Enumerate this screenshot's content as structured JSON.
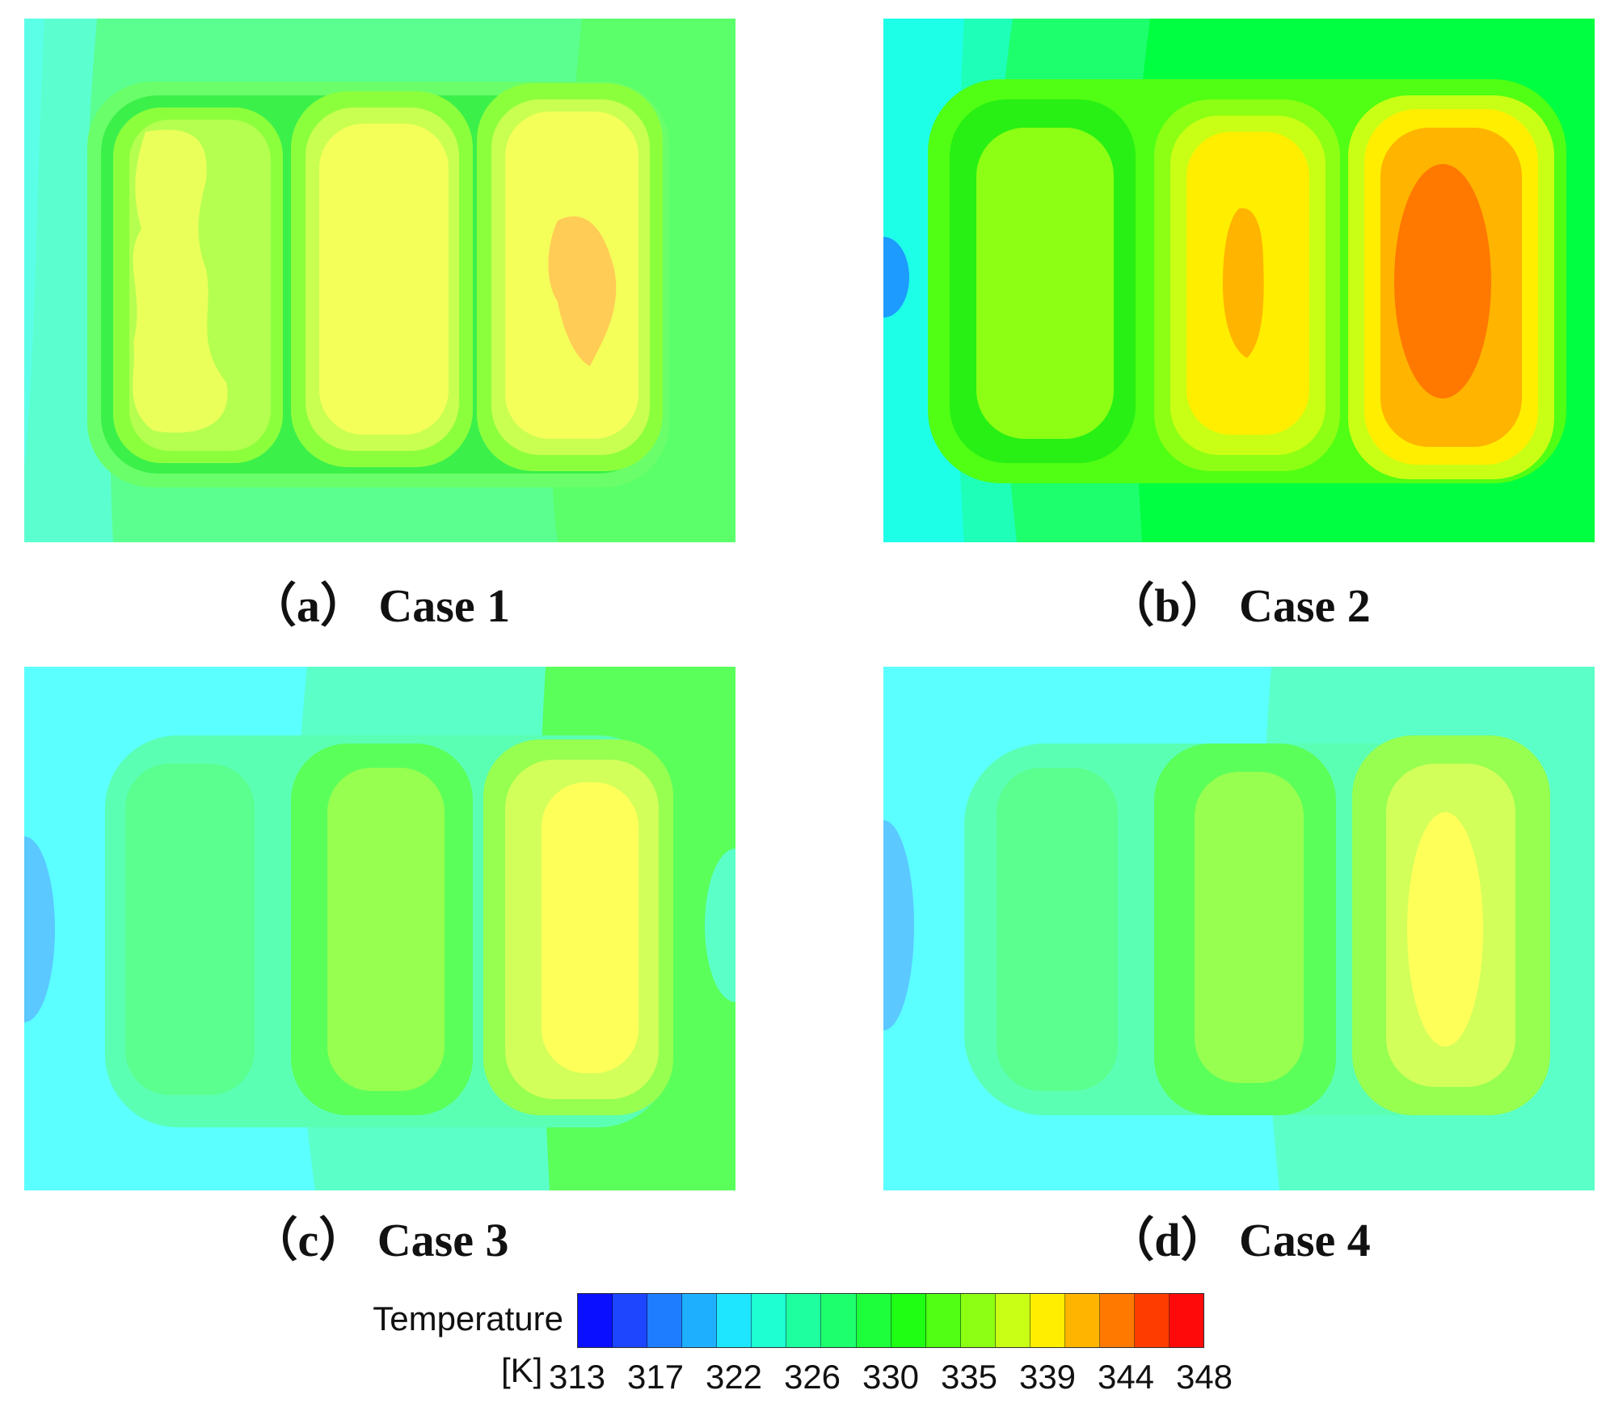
{
  "chart_data": [
    {
      "type": "heatmap",
      "caption": "（a） Case 1",
      "variable": "Temperature",
      "unit": "[K]",
      "background": "#5bff8f",
      "zones": [
        {
          "region": "left_edge",
          "temperature": 324
        },
        {
          "region": "block_1",
          "temperature": 339
        },
        {
          "region": "block_2",
          "temperature": 340
        },
        {
          "region": "block_3",
          "temperature": 340
        },
        {
          "region": "hotspot_3",
          "temperature": 344
        },
        {
          "region": "right_edge",
          "temperature": 333
        }
      ]
    },
    {
      "type": "heatmap",
      "caption": "（b） Case 2",
      "variable": "Temperature",
      "unit": "[K]",
      "background": "#00ff40",
      "zones": [
        {
          "region": "left_edge",
          "temperature": 322
        },
        {
          "region": "inlet_spot",
          "temperature": 317
        },
        {
          "region": "block_1",
          "temperature": 336
        },
        {
          "region": "block_2",
          "temperature": 340
        },
        {
          "region": "hotspot_2",
          "temperature": 344
        },
        {
          "region": "block_3",
          "temperature": 345
        },
        {
          "region": "hotspot_3",
          "temperature": 346
        },
        {
          "region": "right_edge",
          "temperature": 331
        }
      ]
    },
    {
      "type": "heatmap",
      "caption": "（c） Case 3",
      "variable": "Temperature",
      "unit": "[K]",
      "background": "#5bffff",
      "zones": [
        {
          "region": "inlet_spot",
          "temperature": 318
        },
        {
          "region": "left_edge",
          "temperature": 323
        },
        {
          "region": "block_1",
          "temperature": 329
        },
        {
          "region": "block_2",
          "temperature": 336
        },
        {
          "region": "block_3",
          "temperature": 339
        },
        {
          "region": "right_edge",
          "temperature": 332
        }
      ]
    },
    {
      "type": "heatmap",
      "caption": "（d） Case 4",
      "variable": "Temperature",
      "unit": "[K]",
      "background": "#5bffff",
      "zones": [
        {
          "region": "inlet_spot",
          "temperature": 318
        },
        {
          "region": "left_edge",
          "temperature": 323
        },
        {
          "region": "block_1",
          "temperature": 328
        },
        {
          "region": "block_2",
          "temperature": 335
        },
        {
          "region": "block_3",
          "temperature": 339
        },
        {
          "region": "right_edge",
          "temperature": 330
        }
      ]
    }
  ],
  "legend": {
    "title": "Temperature",
    "unit": "[K]",
    "ticks": [
      "313",
      "317",
      "322",
      "326",
      "330",
      "335",
      "339",
      "344",
      "348"
    ],
    "range": [
      313,
      348
    ],
    "colors": [
      "#0a10ff",
      "#1e46ff",
      "#1e7dff",
      "#1eafff",
      "#1ee6ff",
      "#1effd2",
      "#1effa0",
      "#1eff6e",
      "#1eff3c",
      "#1eff14",
      "#50ff14",
      "#8cff14",
      "#c8ff14",
      "#ffee00",
      "#ffb400",
      "#ff7800",
      "#ff3c00",
      "#ff0a0a"
    ]
  }
}
